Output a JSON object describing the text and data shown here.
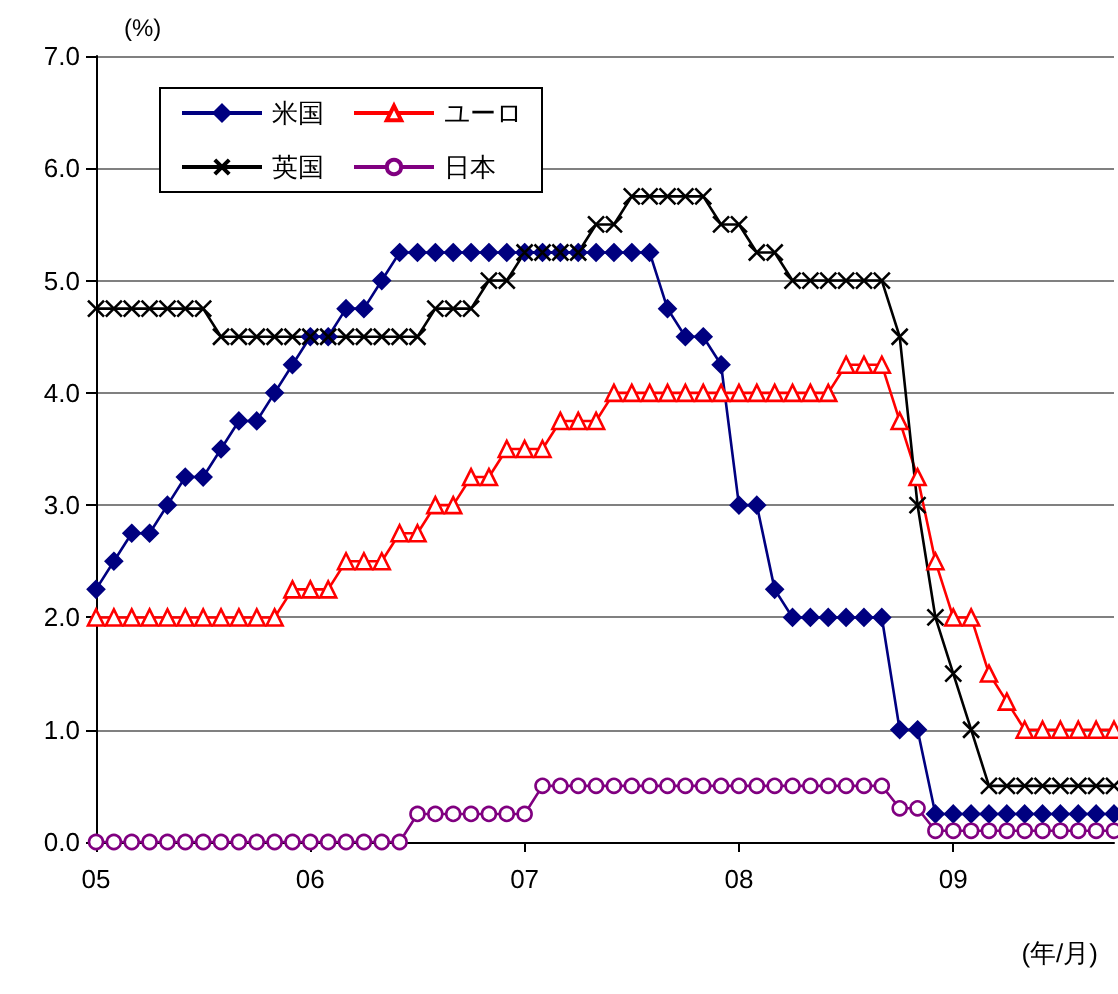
{
  "chart_data": {
    "type": "line",
    "ylabel": "(%)",
    "xlabel": "(年/月)",
    "x": [
      "2005-01",
      "2005-02",
      "2005-03",
      "2005-04",
      "2005-05",
      "2005-06",
      "2005-07",
      "2005-08",
      "2005-09",
      "2005-10",
      "2005-11",
      "2005-12",
      "2006-01",
      "2006-02",
      "2006-03",
      "2006-04",
      "2006-05",
      "2006-06",
      "2006-07",
      "2006-08",
      "2006-09",
      "2006-10",
      "2006-11",
      "2006-12",
      "2007-01",
      "2007-02",
      "2007-03",
      "2007-04",
      "2007-05",
      "2007-06",
      "2007-07",
      "2007-08",
      "2007-09",
      "2007-10",
      "2007-11",
      "2007-12",
      "2008-01",
      "2008-02",
      "2008-03",
      "2008-04",
      "2008-05",
      "2008-06",
      "2008-07",
      "2008-08",
      "2008-09",
      "2008-10",
      "2008-11",
      "2008-12",
      "2009-01",
      "2009-02",
      "2009-03",
      "2009-04",
      "2009-05",
      "2009-06",
      "2009-07",
      "2009-08",
      "2009-09",
      "2009-10"
    ],
    "series": [
      {
        "name": "米国",
        "color": "#000080",
        "marker": "diamond",
        "values": [
          2.25,
          2.5,
          2.75,
          2.75,
          3.0,
          3.25,
          3.25,
          3.5,
          3.75,
          3.75,
          4.0,
          4.25,
          4.5,
          4.5,
          4.75,
          4.75,
          5.0,
          5.25,
          5.25,
          5.25,
          5.25,
          5.25,
          5.25,
          5.25,
          5.25,
          5.25,
          5.25,
          5.25,
          5.25,
          5.25,
          5.25,
          5.25,
          4.75,
          4.5,
          4.5,
          4.25,
          3.0,
          3.0,
          2.25,
          2.0,
          2.0,
          2.0,
          2.0,
          2.0,
          2.0,
          1.0,
          1.0,
          0.25,
          0.25,
          0.25,
          0.25,
          0.25,
          0.25,
          0.25,
          0.25,
          0.25,
          0.25,
          0.25
        ]
      },
      {
        "name": "ユーロ",
        "color": "#ff0000",
        "marker": "triangle",
        "values": [
          2.0,
          2.0,
          2.0,
          2.0,
          2.0,
          2.0,
          2.0,
          2.0,
          2.0,
          2.0,
          2.0,
          2.25,
          2.25,
          2.25,
          2.5,
          2.5,
          2.5,
          2.75,
          2.75,
          3.0,
          3.0,
          3.25,
          3.25,
          3.5,
          3.5,
          3.5,
          3.75,
          3.75,
          3.75,
          4.0,
          4.0,
          4.0,
          4.0,
          4.0,
          4.0,
          4.0,
          4.0,
          4.0,
          4.0,
          4.0,
          4.0,
          4.0,
          4.25,
          4.25,
          4.25,
          3.75,
          3.25,
          2.5,
          2.0,
          2.0,
          1.5,
          1.25,
          1.0,
          1.0,
          1.0,
          1.0,
          1.0,
          1.0
        ]
      },
      {
        "name": "英国",
        "color": "#000000",
        "marker": "cross",
        "values": [
          4.75,
          4.75,
          4.75,
          4.75,
          4.75,
          4.75,
          4.75,
          4.5,
          4.5,
          4.5,
          4.5,
          4.5,
          4.5,
          4.5,
          4.5,
          4.5,
          4.5,
          4.5,
          4.5,
          4.75,
          4.75,
          4.75,
          5.0,
          5.0,
          5.25,
          5.25,
          5.25,
          5.25,
          5.5,
          5.5,
          5.75,
          5.75,
          5.75,
          5.75,
          5.75,
          5.5,
          5.5,
          5.25,
          5.25,
          5.0,
          5.0,
          5.0,
          5.0,
          5.0,
          5.0,
          4.5,
          3.0,
          2.0,
          1.5,
          1.0,
          0.5,
          0.5,
          0.5,
          0.5,
          0.5,
          0.5,
          0.5,
          0.5
        ]
      },
      {
        "name": "日本",
        "color": "#800080",
        "marker": "circle",
        "values": [
          0,
          0,
          0,
          0,
          0,
          0,
          0,
          0,
          0,
          0,
          0,
          0,
          0,
          0,
          0,
          0,
          0,
          0,
          0.25,
          0.25,
          0.25,
          0.25,
          0.25,
          0.25,
          0.25,
          0.5,
          0.5,
          0.5,
          0.5,
          0.5,
          0.5,
          0.5,
          0.5,
          0.5,
          0.5,
          0.5,
          0.5,
          0.5,
          0.5,
          0.5,
          0.5,
          0.5,
          0.5,
          0.5,
          0.5,
          0.3,
          0.3,
          0.1,
          0.1,
          0.1,
          0.1,
          0.1,
          0.1,
          0.1,
          0.1,
          0.1,
          0.1,
          0.1
        ]
      }
    ],
    "xlim": [
      "2005-01",
      "2009-10"
    ],
    "xticks": [
      {
        "value": "2005-01",
        "label": "05"
      },
      {
        "value": "2006-01",
        "label": "06"
      },
      {
        "value": "2007-01",
        "label": "07"
      },
      {
        "value": "2008-01",
        "label": "08"
      },
      {
        "value": "2009-01",
        "label": "09"
      }
    ],
    "ylim": [
      0,
      7
    ],
    "yticks": [
      {
        "value": 0,
        "label": "0.0"
      },
      {
        "value": 1,
        "label": "1.0"
      },
      {
        "value": 2,
        "label": "2.0"
      },
      {
        "value": 3,
        "label": "3.0"
      },
      {
        "value": 4,
        "label": "4.0"
      },
      {
        "value": 5,
        "label": "5.0"
      },
      {
        "value": 6,
        "label": "6.0"
      },
      {
        "value": 7,
        "label": "7.0"
      }
    ],
    "grid": "y",
    "legend": "top left",
    "line_style": "solid"
  }
}
